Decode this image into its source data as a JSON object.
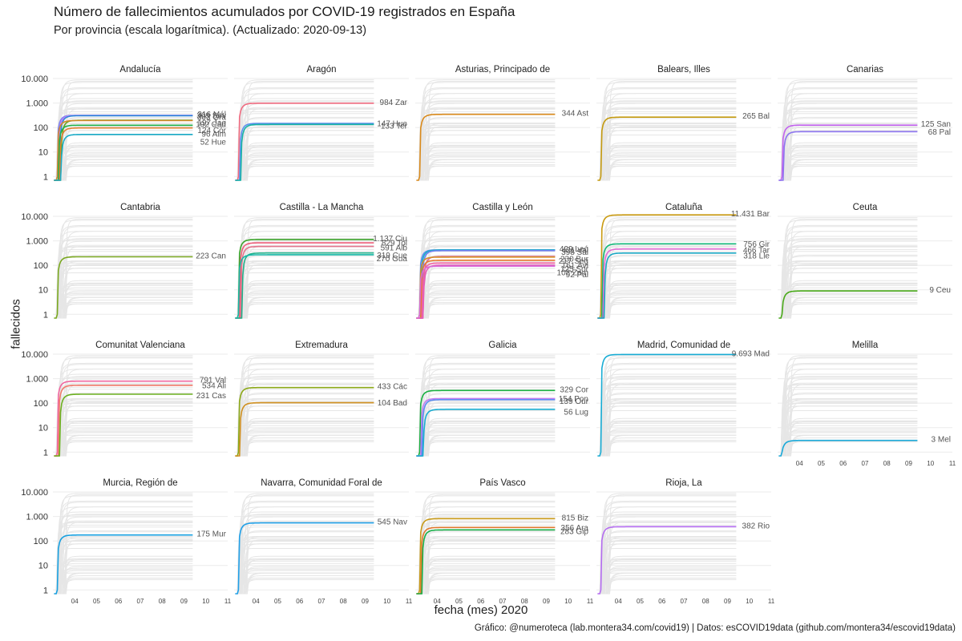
{
  "title": "Número de fallecimientos acumulados por COVID-19 registrados en España",
  "subtitle": "Por provincia (escala logarítmica). (Actualizado: 2020-09-13)",
  "caption": "Gráfico: @numeroteca (lab.montera34.com/covid19) | Datos: esCOVID19data (github.com/montera34/escovid19data)",
  "chart_data": {
    "type": "line",
    "facet_by": "comunidad autónoma",
    "xlabel": "fecha (mes) 2020",
    "ylabel": "fallecidos",
    "y_scale": "log",
    "ylim": [
      0.7,
      10000
    ],
    "y_ticks": [
      1,
      10,
      100,
      1000,
      10000
    ],
    "y_tick_labels": [
      "1",
      "10",
      "100",
      "1.000",
      "10.000"
    ],
    "x_ticks": [
      "04",
      "05",
      "06",
      "07",
      "08",
      "09",
      "10",
      "11"
    ],
    "xlim": [
      "2020-03-01",
      "2020-11-01"
    ],
    "background_series_color": "#e6e6e6",
    "facets": [
      {
        "name": "Andalucía",
        "series": [
          {
            "name": "Mál",
            "label": "316 Mál",
            "value": 316,
            "color": "#7c80ef"
          },
          {
            "name": "Sev",
            "label": "309 Sev",
            "value": 309,
            "color": "#c17cfa"
          },
          {
            "name": "Gra",
            "label": "303 Gra",
            "value": 303,
            "color": "#2e8bd8"
          },
          {
            "name": "Jae",
            "label": "197 Jae",
            "value": 197,
            "color": "#6aa523"
          },
          {
            "name": "Cád",
            "label": "192 Cád",
            "value": 192,
            "color": "#d3892a"
          },
          {
            "name": "Cór",
            "label": "124 Cór",
            "value": 124,
            "color": "#20b04a"
          },
          {
            "name": "Alm",
            "label": "96 Alm",
            "value": 96,
            "color": "#e08030"
          },
          {
            "name": "Hue",
            "label": "52 Hue",
            "value": 52,
            "color": "#1aacc8"
          }
        ]
      },
      {
        "name": "Aragón",
        "series": [
          {
            "name": "Zar",
            "label": "984 Zar",
            "value": 984,
            "color": "#f06b80"
          },
          {
            "name": "Hue",
            "label": "147 Hue",
            "value": 147,
            "color": "#5c8ff0"
          },
          {
            "name": "Ter",
            "label": "133 Ter",
            "value": 133,
            "color": "#17b4a4"
          }
        ]
      },
      {
        "name": "Asturias, Principado de",
        "series": [
          {
            "name": "Ast",
            "label": "344 Ast",
            "value": 344,
            "color": "#d98a1c"
          }
        ]
      },
      {
        "name": "Balears, Illes",
        "series": [
          {
            "name": "Bal",
            "label": "265 Bal",
            "value": 265,
            "color": "#c49a10"
          }
        ]
      },
      {
        "name": "Canarias",
        "series": [
          {
            "name": "San",
            "label": "125 San",
            "value": 125,
            "color": "#c262ee"
          },
          {
            "name": "Pal",
            "label": "68 Pal",
            "value": 68,
            "color": "#8c74ef"
          }
        ]
      },
      {
        "name": "Cantabria",
        "series": [
          {
            "name": "Can",
            "label": "223 Can",
            "value": 223,
            "color": "#7aa820"
          }
        ]
      },
      {
        "name": "Castilla - La Mancha",
        "series": [
          {
            "name": "Ciu",
            "label": "1.137 Ciu",
            "value": 1137,
            "color": "#3aa42a"
          },
          {
            "name": "Tol",
            "label": "829 Tol",
            "value": 829,
            "color": "#ec5d78"
          },
          {
            "name": "Alb",
            "label": "591 Alb",
            "value": 591,
            "color": "#e5748c"
          },
          {
            "name": "Cue",
            "label": "319 Cue",
            "value": 319,
            "color": "#22b08a"
          },
          {
            "name": "Gua",
            "label": "270 Gua",
            "value": 270,
            "color": "#18b8a8"
          }
        ]
      },
      {
        "name": "Castilla y León",
        "series": [
          {
            "name": "Leó",
            "label": "429 Leó",
            "value": 429,
            "color": "#5e8cf0"
          },
          {
            "name": "Val",
            "label": "421 Val",
            "value": 421,
            "color": "#18b0c4"
          },
          {
            "name": "Sal",
            "label": "398 Sal",
            "value": 398,
            "color": "#6f7ff0"
          },
          {
            "name": "Bur",
            "label": "230 Bur",
            "value": 230,
            "color": "#e26a9a"
          },
          {
            "name": "Seg",
            "label": "217 Seg",
            "value": 217,
            "color": "#d38f25"
          },
          {
            "name": "Ávi",
            "label": "161 Ávi",
            "value": 161,
            "color": "#e87a30"
          },
          {
            "name": "Sor",
            "label": "125 Sor",
            "value": 125,
            "color": "#f061a0"
          },
          {
            "name": "Zam",
            "label": "102 Zam",
            "value": 102,
            "color": "#e35fb8"
          },
          {
            "name": "Pal",
            "label": "92 Pal",
            "value": 92,
            "color": "#d86bd8"
          }
        ]
      },
      {
        "name": "Cataluña",
        "series": [
          {
            "name": "Bar",
            "label": "11.431 Bar",
            "value": 11431,
            "color": "#c99a10"
          },
          {
            "name": "Gir",
            "label": "756 Gir",
            "value": 756,
            "color": "#12b879"
          },
          {
            "name": "Tar",
            "label": "466 Tar",
            "value": 466,
            "color": "#e26ad4"
          },
          {
            "name": "Lle",
            "label": "318 Lle",
            "value": 318,
            "color": "#1ba8c4"
          }
        ]
      },
      {
        "name": "Ceuta",
        "series": [
          {
            "name": "Ceu",
            "label": "9 Ceu",
            "value": 9,
            "color": "#48a818"
          }
        ]
      },
      {
        "name": "Comunitat Valenciana",
        "series": [
          {
            "name": "Val",
            "label": "791 Val",
            "value": 791,
            "color": "#f068a0"
          },
          {
            "name": "Ali",
            "label": "534 Ali",
            "value": 534,
            "color": "#f27a6a"
          },
          {
            "name": "Cas",
            "label": "231 Cas",
            "value": 231,
            "color": "#6cb020"
          }
        ]
      },
      {
        "name": "Extremadura",
        "series": [
          {
            "name": "Các",
            "label": "433 Các",
            "value": 433,
            "color": "#8ca818"
          },
          {
            "name": "Bad",
            "label": "104 Bad",
            "value": 104,
            "color": "#d09020"
          }
        ]
      },
      {
        "name": "Galicia",
        "series": [
          {
            "name": "Cor",
            "label": "329 Cor",
            "value": 329,
            "color": "#18b040"
          },
          {
            "name": "Pon",
            "label": "154 Pon",
            "value": 154,
            "color": "#c47cf0"
          },
          {
            "name": "Our",
            "label": "139 Our",
            "value": 139,
            "color": "#5c8cf0"
          },
          {
            "name": "Lug",
            "label": "56 Lug",
            "value": 56,
            "color": "#18acd0"
          }
        ]
      },
      {
        "name": "Madrid, Comunidad de",
        "series": [
          {
            "name": "Mad",
            "label": "9.693 Mad",
            "value": 9693,
            "color": "#18acd4"
          }
        ]
      },
      {
        "name": "Melilla",
        "series": [
          {
            "name": "Mel",
            "label": "3 Mel",
            "value": 3,
            "color": "#18a8d8"
          }
        ]
      },
      {
        "name": "Murcia, Región de",
        "series": [
          {
            "name": "Mur",
            "label": "175 Mur",
            "value": 175,
            "color": "#18a0e0"
          }
        ]
      },
      {
        "name": "Navarra, Comunidad Foral de",
        "series": [
          {
            "name": "Nav",
            "label": "545 Nav",
            "value": 545,
            "color": "#20a0e8"
          }
        ]
      },
      {
        "name": "País Vasco",
        "series": [
          {
            "name": "Biz",
            "label": "815 Biz",
            "value": 815,
            "color": "#c89a18"
          },
          {
            "name": "Ara",
            "label": "356 Ara",
            "value": 356,
            "color": "#e07a30"
          },
          {
            "name": "Gip",
            "label": "283 Gip",
            "value": 283,
            "color": "#18b04a"
          }
        ]
      },
      {
        "name": "Rioja, La",
        "series": [
          {
            "name": "Rio",
            "label": "382 Rio",
            "value": 382,
            "color": "#b46cf0"
          }
        ]
      }
    ]
  }
}
